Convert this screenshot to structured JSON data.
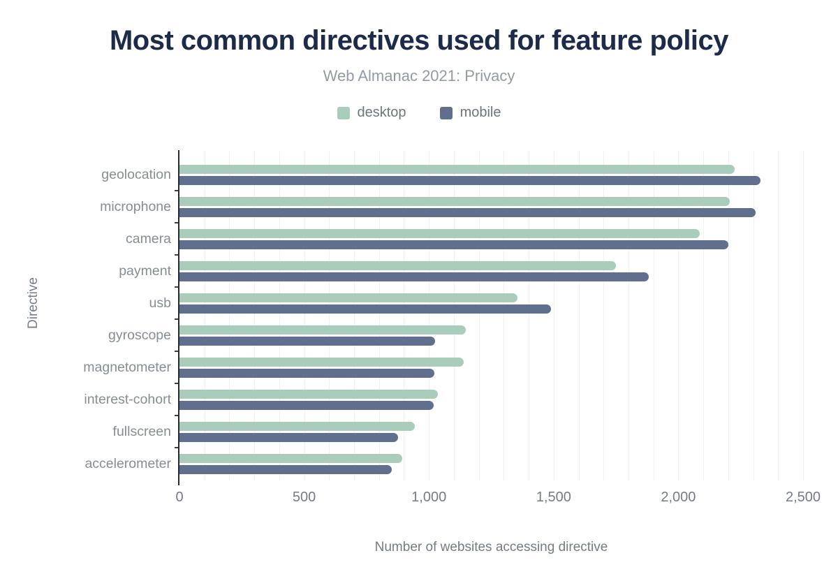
{
  "chart_data": {
    "type": "bar",
    "orientation": "horizontal",
    "title": "Most common directives used for feature policy",
    "subtitle": "Web Almanac 2021: Privacy",
    "xlabel": "Number of websites accessing directive",
    "ylabel": "Directive",
    "xlim": [
      0,
      2500
    ],
    "grid_interval": 100,
    "grid": true,
    "legend_position": "top",
    "xticks": [
      {
        "value": 0,
        "label": "0"
      },
      {
        "value": 500,
        "label": "500"
      },
      {
        "value": 1000,
        "label": "1,000"
      },
      {
        "value": 1500,
        "label": "1,500"
      },
      {
        "value": 2000,
        "label": "2,000"
      },
      {
        "value": 2500,
        "label": "2,500"
      }
    ],
    "categories": [
      "geolocation",
      "microphone",
      "camera",
      "payment",
      "usb",
      "gyroscope",
      "magnetometer",
      "interest-cohort",
      "fullscreen",
      "accelerometer"
    ],
    "series": [
      {
        "name": "desktop",
        "color": "#a9ccbb",
        "values": [
          2225,
          2205,
          2085,
          1750,
          1355,
          1148,
          1140,
          1036,
          943,
          892
        ]
      },
      {
        "name": "mobile",
        "color": "#5f6f8d",
        "values": [
          2330,
          2310,
          2200,
          1880,
          1490,
          1025,
          1022,
          1018,
          875,
          852
        ]
      }
    ]
  },
  "colors": {
    "title": "#1c2b4a",
    "subtitle": "#949ba3",
    "legend_text": "#6e757d",
    "axis_line": "#262b33",
    "gridline": "#eff1f3",
    "tick_label": "#757c84",
    "axis_title": "#757c84",
    "category_label": "#878d95",
    "background": "#ffffff"
  }
}
